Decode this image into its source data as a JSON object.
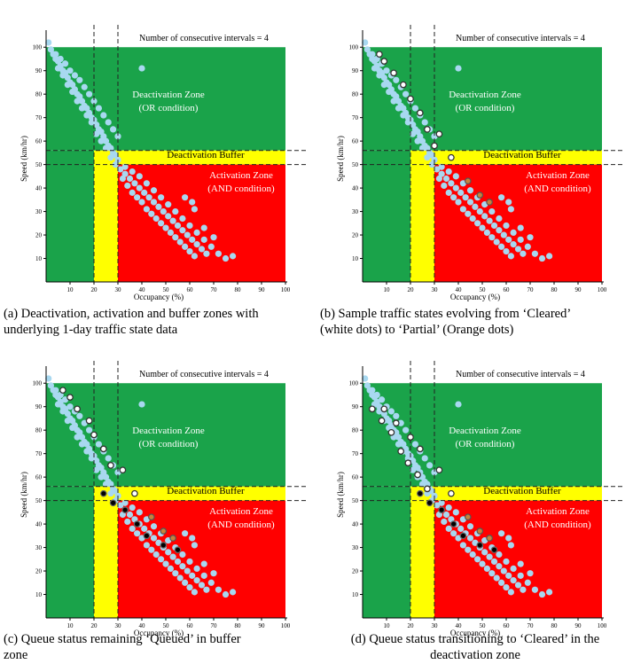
{
  "figure": {
    "panels": [
      {
        "id": "a",
        "caption": "(a) Deactivation, activation and buffer zones with\nunderlying 1-day traffic state data",
        "caption_centered": false,
        "annotation": "Number of consecutive intervals = 4",
        "xlabel": "Occupancy (%)",
        "ylabel": "Speed (km/hr)",
        "zone_labels": {
          "deactivation": "Deactivation Zone",
          "deactivation_sub": "(OR condition)",
          "buffer": "Deactivation Buffer",
          "activation": "Activation Zone",
          "activation_sub": "(AND condition)"
        },
        "markers": {
          "white": [],
          "orange": [],
          "black": []
        }
      },
      {
        "id": "b",
        "caption": "(b) Sample traffic states evolving from ‘Cleared’\n(white dots) to ‘Partial’ (Orange dots)",
        "caption_centered": false,
        "annotation": "Number of consecutive intervals = 4",
        "xlabel": "Occupancy (%)",
        "ylabel": "Speed (km/hr)",
        "zone_labels": {
          "deactivation": "Deactivation Zone",
          "deactivation_sub": "(OR condition)",
          "buffer": "Deactivation Buffer",
          "activation": "Activation Zone",
          "activation_sub": "(AND condition)"
        },
        "markers": {
          "white": [
            [
              7,
              97
            ],
            [
              9,
              94
            ],
            [
              13,
              89
            ],
            [
              17,
              84
            ],
            [
              20,
              78
            ],
            [
              24,
              72
            ],
            [
              27,
              65
            ],
            [
              30,
              58
            ],
            [
              32,
              63
            ],
            [
              37,
              53
            ]
          ],
          "orange": [
            [
              44,
              43
            ],
            [
              49,
              37
            ],
            [
              53,
              34
            ]
          ],
          "black": []
        }
      },
      {
        "id": "c",
        "caption": "(c) Queue status remaining ‘Queued’ in buffer\nzone",
        "caption_centered": false,
        "annotation": "Number of consecutive intervals = 4",
        "xlabel": "Occupancy (%)",
        "ylabel": "Speed (km/hr)",
        "zone_labels": {
          "deactivation": "Deactivation Zone",
          "deactivation_sub": "(OR condition)",
          "buffer": "Deactivation Buffer",
          "activation": "Activation Zone",
          "activation_sub": "(AND condition)"
        },
        "markers": {
          "white": [
            [
              7,
              97
            ],
            [
              10,
              94
            ],
            [
              13,
              89
            ],
            [
              18,
              84
            ],
            [
              20,
              78
            ],
            [
              24,
              72
            ],
            [
              27,
              65
            ],
            [
              32,
              63
            ],
            [
              37,
              53
            ]
          ],
          "orange": [
            [
              44,
              43
            ],
            [
              49,
              37
            ],
            [
              53,
              34
            ]
          ],
          "black": [
            [
              24,
              53
            ],
            [
              28,
              49
            ],
            [
              33,
              46
            ],
            [
              38,
              40
            ],
            [
              42,
              35
            ],
            [
              49,
              31
            ],
            [
              55,
              29
            ]
          ]
        }
      },
      {
        "id": "d",
        "caption": "(d) Queue status transitioning to ‘Cleared’ in the\ndeactivation zone",
        "caption_centered": true,
        "annotation": "Number of consecutive intervals = 4",
        "xlabel": "Occupancy (%)",
        "ylabel": "Speed (km/hr)",
        "zone_labels": {
          "deactivation": "Deactivation Zone",
          "deactivation_sub": "(OR condition)",
          "buffer": "Deactivation Buffer",
          "activation": "Activation Zone",
          "activation_sub": "(AND condition)"
        },
        "markers": {
          "white": [
            [
              4,
              89
            ],
            [
              8,
              84
            ],
            [
              12,
              79
            ],
            [
              16,
              71
            ],
            [
              19,
              66
            ],
            [
              23,
              61
            ],
            [
              27,
              55
            ],
            [
              32,
              63
            ],
            [
              37,
              53
            ],
            [
              9,
              89
            ],
            [
              14,
              83
            ],
            [
              20,
              77
            ],
            [
              24,
              72
            ]
          ],
          "orange": [
            [
              44,
              43
            ],
            [
              49,
              37
            ],
            [
              53,
              34
            ]
          ],
          "black": [
            [
              24,
              53
            ],
            [
              28,
              49
            ],
            [
              33,
              46
            ],
            [
              38,
              40
            ],
            [
              42,
              35
            ],
            [
              49,
              31
            ],
            [
              55,
              29
            ]
          ]
        }
      }
    ]
  },
  "chart_data": [
    {
      "type": "scatter",
      "panel": "a",
      "xlabel": "Occupancy (%)",
      "ylabel": "Speed (km/hr)",
      "xlim": [
        0,
        100
      ],
      "ylim": [
        0,
        105
      ],
      "xticks": [
        10,
        20,
        30,
        40,
        50,
        60,
        70,
        80,
        90,
        100
      ],
      "yticks": [
        10,
        20,
        30,
        40,
        50,
        60,
        70,
        80,
        90,
        100
      ],
      "thresholds": {
        "occupancy_lines": [
          20,
          30
        ],
        "speed_lines": [
          50,
          56
        ]
      },
      "zones": {
        "deactivation": {
          "x_max": 20,
          "y_min": 56
        },
        "buffer": {
          "x": [
            20,
            30
          ],
          "y": [
            50,
            56
          ]
        },
        "activation": {
          "x_min": 30,
          "y_max": 50
        }
      },
      "series": [
        {
          "name": "1-day traffic state data",
          "color": "#a8d8f0",
          "points": [
            [
              1,
              102
            ],
            [
              2,
              99
            ],
            [
              3,
              97
            ],
            [
              4,
              95
            ],
            [
              5,
              94
            ],
            [
              6,
              92
            ],
            [
              7,
              90
            ],
            [
              8,
              89
            ],
            [
              9,
              87
            ],
            [
              10,
              85
            ],
            [
              11,
              84
            ],
            [
              12,
              82
            ],
            [
              13,
              80
            ],
            [
              14,
              79
            ],
            [
              15,
              77
            ],
            [
              16,
              75
            ],
            [
              17,
              74
            ],
            [
              18,
              72
            ],
            [
              19,
              70
            ],
            [
              20,
              69
            ],
            [
              21,
              67
            ],
            [
              22,
              65
            ],
            [
              23,
              64
            ],
            [
              24,
              62
            ],
            [
              25,
              60
            ],
            [
              26,
              58
            ],
            [
              27,
              57
            ],
            [
              28,
              55
            ],
            [
              29,
              54
            ],
            [
              30,
              52
            ],
            [
              4,
              97
            ],
            [
              6,
              95
            ],
            [
              8,
              93
            ],
            [
              10,
              90
            ],
            [
              12,
              88
            ],
            [
              14,
              86
            ],
            [
              16,
              83
            ],
            [
              18,
              80
            ],
            [
              20,
              77
            ],
            [
              22,
              74
            ],
            [
              24,
              71
            ],
            [
              26,
              68
            ],
            [
              28,
              65
            ],
            [
              30,
              62
            ],
            [
              5,
              91
            ],
            [
              7,
              88
            ],
            [
              9,
              84
            ],
            [
              11,
              81
            ],
            [
              13,
              77
            ],
            [
              15,
              74
            ],
            [
              17,
              71
            ],
            [
              19,
              68
            ],
            [
              21,
              63
            ],
            [
              23,
              60
            ],
            [
              25,
              57
            ],
            [
              27,
              53
            ],
            [
              29,
              50
            ],
            [
              31,
              48
            ],
            [
              33,
              46
            ],
            [
              35,
              44
            ],
            [
              37,
              42
            ],
            [
              39,
              40
            ],
            [
              41,
              38
            ],
            [
              43,
              36
            ],
            [
              45,
              34
            ],
            [
              47,
              32
            ],
            [
              49,
              30
            ],
            [
              51,
              28
            ],
            [
              53,
              26
            ],
            [
              55,
              24
            ],
            [
              57,
              22
            ],
            [
              59,
              20
            ],
            [
              61,
              18
            ],
            [
              63,
              16
            ],
            [
              65,
              14
            ],
            [
              67,
              12
            ],
            [
              32,
              44
            ],
            [
              34,
              41
            ],
            [
              36,
              38
            ],
            [
              38,
              36
            ],
            [
              40,
              34
            ],
            [
              42,
              31
            ],
            [
              44,
              29
            ],
            [
              46,
              27
            ],
            [
              48,
              25
            ],
            [
              50,
              23
            ],
            [
              52,
              21
            ],
            [
              54,
              19
            ],
            [
              56,
              17
            ],
            [
              58,
              15
            ],
            [
              60,
              13
            ],
            [
              62,
              11
            ],
            [
              33,
              49
            ],
            [
              36,
              47
            ],
            [
              39,
              45
            ],
            [
              42,
              42
            ],
            [
              45,
              39
            ],
            [
              48,
              36
            ],
            [
              51,
              33
            ],
            [
              54,
              30
            ],
            [
              57,
              27
            ],
            [
              60,
              24
            ],
            [
              63,
              21
            ],
            [
              66,
              18
            ],
            [
              69,
              15
            ],
            [
              72,
              12
            ],
            [
              75,
              10
            ],
            [
              78,
              11
            ],
            [
              40,
              91
            ],
            [
              62,
              31
            ],
            [
              66,
              23
            ],
            [
              70,
              19
            ],
            [
              58,
              36
            ],
            [
              61,
              34
            ]
          ]
        }
      ]
    },
    {
      "type": "scatter",
      "panel": "b",
      "xlabel": "Occupancy (%)",
      "ylabel": "Speed (km/hr)",
      "xlim": [
        0,
        100
      ],
      "ylim": [
        0,
        105
      ],
      "series": [
        {
          "name": "Cleared",
          "color": "#ffffff",
          "points": [
            [
              7,
              97
            ],
            [
              9,
              94
            ],
            [
              13,
              89
            ],
            [
              17,
              84
            ],
            [
              20,
              78
            ],
            [
              24,
              72
            ],
            [
              27,
              65
            ],
            [
              30,
              58
            ],
            [
              32,
              63
            ],
            [
              37,
              53
            ]
          ]
        },
        {
          "name": "Partial",
          "color": "#c8823c",
          "points": [
            [
              44,
              43
            ],
            [
              49,
              37
            ],
            [
              53,
              34
            ]
          ]
        }
      ]
    },
    {
      "type": "scatter",
      "panel": "c",
      "xlabel": "Occupancy (%)",
      "ylabel": "Speed (km/hr)",
      "xlim": [
        0,
        100
      ],
      "ylim": [
        0,
        105
      ],
      "series": [
        {
          "name": "Queued",
          "color": "#000000",
          "points": [
            [
              24,
              53
            ],
            [
              28,
              49
            ],
            [
              33,
              46
            ],
            [
              38,
              40
            ],
            [
              42,
              35
            ],
            [
              49,
              31
            ],
            [
              55,
              29
            ]
          ]
        }
      ]
    },
    {
      "type": "scatter",
      "panel": "d",
      "xlabel": "Occupancy (%)",
      "ylabel": "Speed (km/hr)",
      "xlim": [
        0,
        100
      ],
      "ylim": [
        0,
        105
      ],
      "series": [
        {
          "name": "Cleared",
          "color": "#ffffff",
          "points": [
            [
              4,
              89
            ],
            [
              8,
              84
            ],
            [
              12,
              79
            ],
            [
              16,
              71
            ],
            [
              19,
              66
            ],
            [
              23,
              61
            ],
            [
              27,
              55
            ]
          ]
        }
      ]
    }
  ]
}
